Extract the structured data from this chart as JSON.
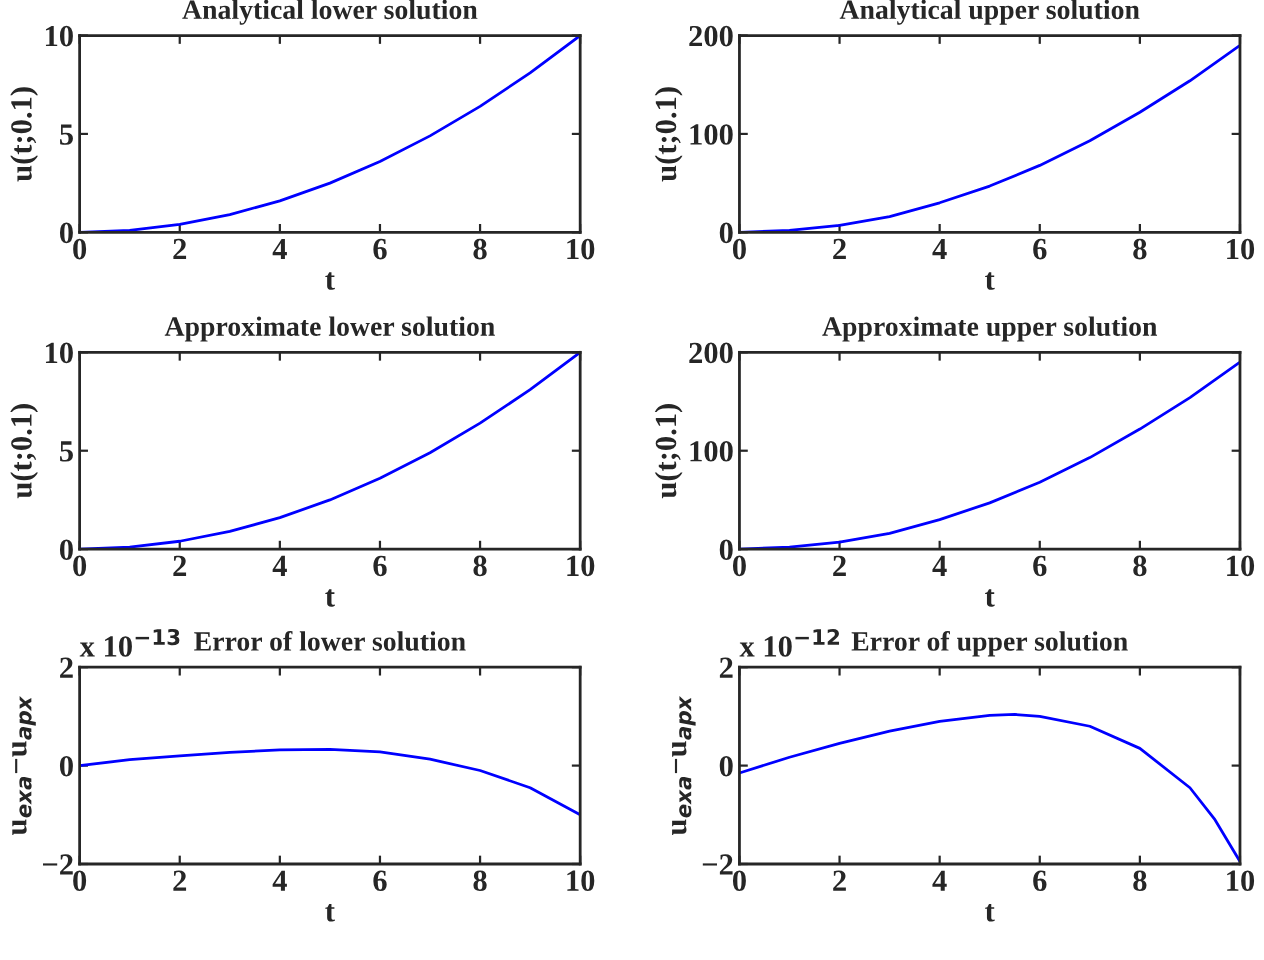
{
  "chart_data": [
    {
      "type": "line",
      "title": "Analytical lower solution",
      "xlabel": "t",
      "ylabel": "u(t;0.1)",
      "x": [
        0,
        1,
        2,
        3,
        4,
        5,
        6,
        7,
        8,
        9,
        10
      ],
      "series": [
        {
          "color": "#0000ff",
          "values": [
            0,
            0.1,
            0.4,
            0.9,
            1.6,
            2.5,
            3.6,
            4.9,
            6.4,
            8.1,
            10
          ]
        }
      ],
      "xlim": [
        0,
        10
      ],
      "xticks": [
        0,
        2,
        4,
        6,
        8,
        10
      ],
      "ylim": [
        0,
        10
      ],
      "yticks": [
        0,
        5,
        10
      ],
      "grid": false
    },
    {
      "type": "line",
      "title": "Analytical upper solution",
      "xlabel": "t",
      "ylabel": "u(t;0.1)",
      "x": [
        0,
        1,
        2,
        3,
        4,
        5,
        6,
        7,
        8,
        9,
        10
      ],
      "series": [
        {
          "color": "#0000ff",
          "values": [
            0,
            2,
            7,
            16,
            30,
            47,
            68,
            93,
            122,
            154,
            190
          ]
        }
      ],
      "xlim": [
        0,
        10
      ],
      "xticks": [
        0,
        2,
        4,
        6,
        8,
        10
      ],
      "ylim": [
        0,
        200
      ],
      "yticks": [
        0,
        100,
        200
      ],
      "grid": false
    },
    {
      "type": "line",
      "title": "Approximate lower solution",
      "xlabel": "t",
      "ylabel": "u(t;0.1)",
      "x": [
        0,
        1,
        2,
        3,
        4,
        5,
        6,
        7,
        8,
        9,
        10
      ],
      "series": [
        {
          "color": "#0000ff",
          "values": [
            0,
            0.1,
            0.4,
            0.9,
            1.6,
            2.5,
            3.6,
            4.9,
            6.4,
            8.1,
            10
          ]
        }
      ],
      "xlim": [
        0,
        10
      ],
      "xticks": [
        0,
        2,
        4,
        6,
        8,
        10
      ],
      "ylim": [
        0,
        10
      ],
      "yticks": [
        0,
        5,
        10
      ],
      "grid": false
    },
    {
      "type": "line",
      "title": "Approximate upper solution",
      "xlabel": "t",
      "ylabel": "u(t;0.1)",
      "x": [
        0,
        1,
        2,
        3,
        4,
        5,
        6,
        7,
        8,
        9,
        10
      ],
      "series": [
        {
          "color": "#0000ff",
          "values": [
            0,
            2,
            7,
            16,
            30,
            47,
            68,
            93,
            122,
            154,
            190
          ]
        }
      ],
      "xlim": [
        0,
        10
      ],
      "xticks": [
        0,
        2,
        4,
        6,
        8,
        10
      ],
      "ylim": [
        0,
        200
      ],
      "yticks": [
        0,
        100,
        200
      ],
      "grid": false
    },
    {
      "type": "line",
      "title": "Error of lower solution",
      "xlabel": "t",
      "ylabel": "u$_{exa}$−u$_{apx}$",
      "annotations": [
        "x 10$^{−13}$"
      ],
      "x": [
        0,
        1,
        2,
        3,
        4,
        5,
        6,
        7,
        8,
        9,
        10
      ],
      "series": [
        {
          "color": "#0000ff",
          "values": [
            0,
            0.12,
            0.2,
            0.27,
            0.32,
            0.33,
            0.28,
            0.13,
            -0.1,
            -0.45,
            -1.0
          ]
        }
      ],
      "xlim": [
        0,
        10
      ],
      "xticks": [
        0,
        2,
        4,
        6,
        8,
        10
      ],
      "ylim": [
        -2,
        2
      ],
      "yticks": [
        {
          "value": -2,
          "label": "−2"
        },
        0,
        2
      ],
      "grid": false
    },
    {
      "type": "line",
      "title": "Error of upper solution",
      "xlabel": "t",
      "ylabel": "u$_{exa}$−u$_{apx}$",
      "annotations": [
        "x 10$^{−12}$"
      ],
      "x": [
        0,
        1,
        2,
        3,
        4,
        5,
        5.5,
        6,
        7,
        8,
        9,
        9.5,
        10
      ],
      "series": [
        {
          "color": "#0000ff",
          "values": [
            -0.15,
            0.17,
            0.45,
            0.7,
            0.9,
            1.02,
            1.04,
            1.0,
            0.8,
            0.35,
            -0.45,
            -1.1,
            -1.95
          ]
        }
      ],
      "xlim": [
        0,
        10
      ],
      "xticks": [
        0,
        2,
        4,
        6,
        8,
        10
      ],
      "ylim": [
        -2,
        2
      ],
      "yticks": [
        {
          "value": -2,
          "label": "−2"
        },
        0,
        2
      ],
      "grid": false
    }
  ]
}
